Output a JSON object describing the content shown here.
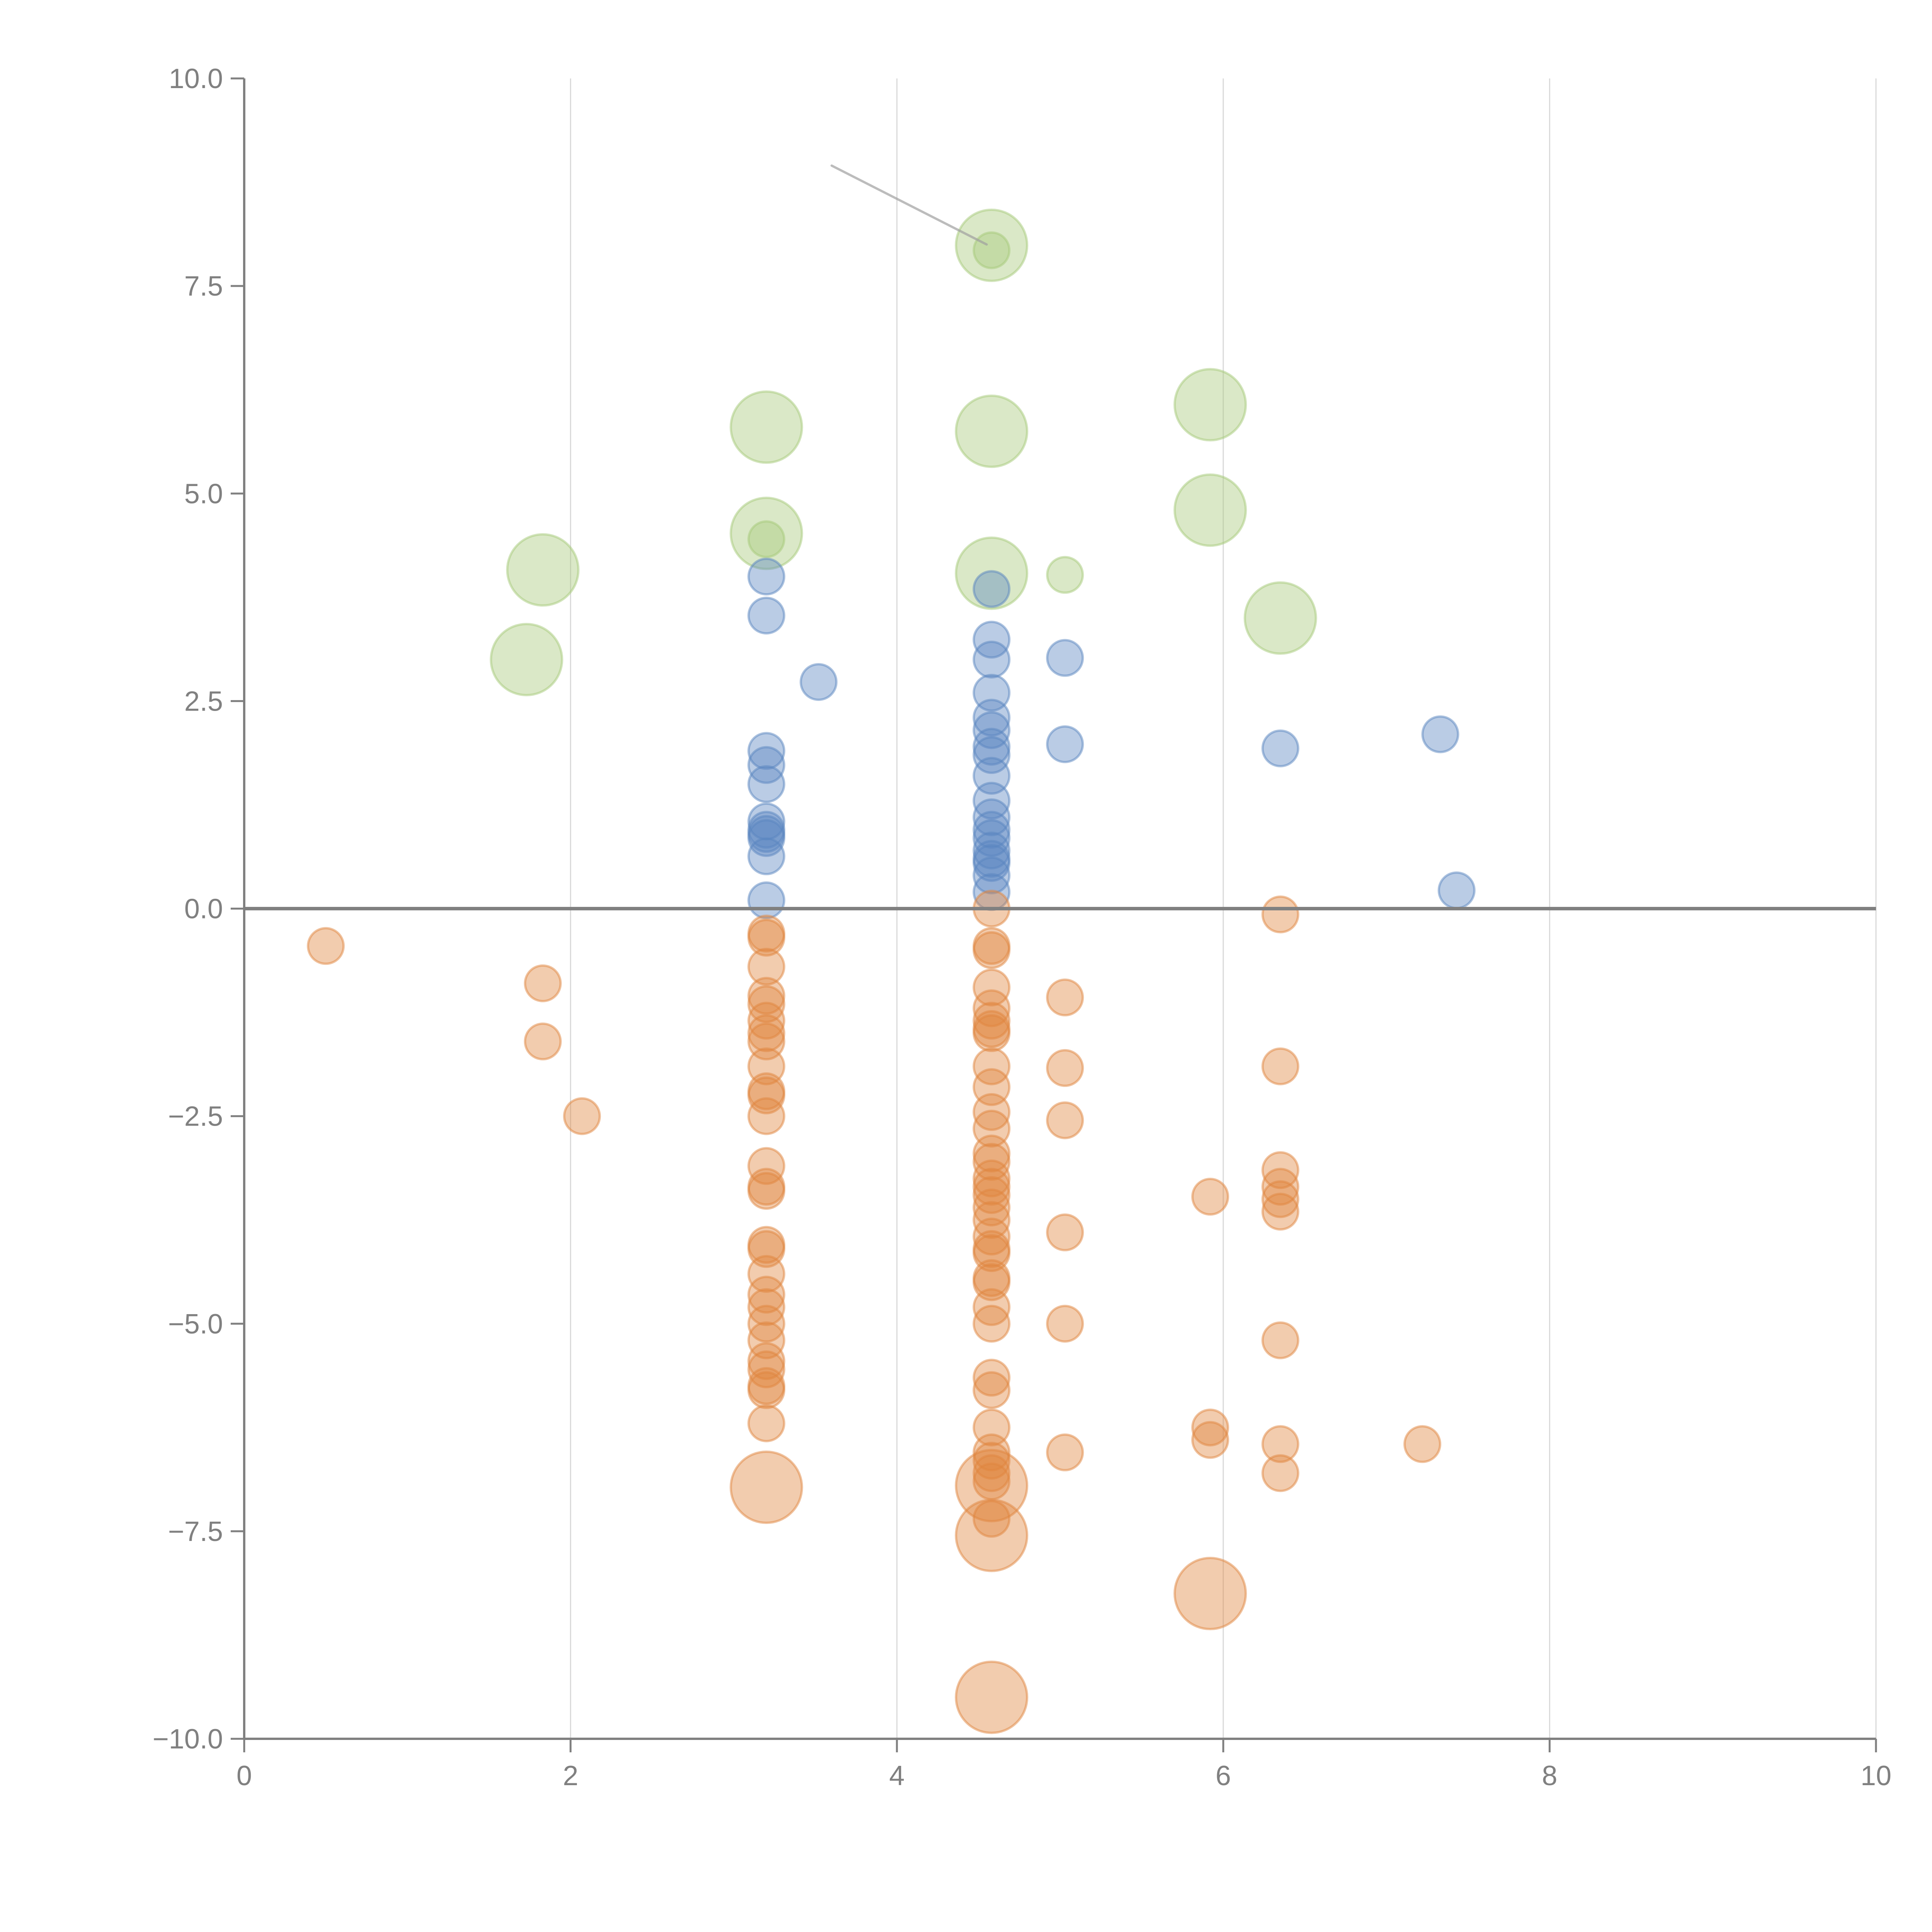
{
  "chart_data": {
    "type": "scatter",
    "title": "",
    "xlabel": "",
    "ylabel": "",
    "xlim": [
      0,
      10
    ],
    "ylim": [
      -10,
      10
    ],
    "grid": "vertical",
    "legend": "none",
    "x_ticks": [
      "0",
      "2",
      "4",
      "6",
      "8",
      "10"
    ],
    "x_tick_values": [
      0,
      2,
      4,
      6,
      8,
      10
    ],
    "y_ticks": [
      "10.0",
      "7.5",
      "5.0",
      "2.5",
      "0.0",
      "−2.5",
      "−5.0",
      "−7.5",
      "−10.0"
    ],
    "y_tick_values": [
      10,
      7.5,
      5,
      2.5,
      0,
      -2.5,
      -5,
      -7.5,
      -10
    ],
    "reference_line_y": 0,
    "colors": {
      "green": "#a6c97a",
      "blue": "#5a86c0",
      "orange": "#e0853f",
      "zero_line": "#808080"
    },
    "annotation": {
      "from": [
        3.6,
        8.95
      ],
      "to": [
        4.55,
        8.0
      ]
    },
    "series": [
      {
        "name": "green-large",
        "color": "green",
        "size": "large",
        "points": [
          [
            1.73,
            3.0
          ],
          [
            1.83,
            4.08
          ],
          [
            3.2,
            5.8
          ],
          [
            3.2,
            4.52
          ],
          [
            4.58,
            7.99
          ],
          [
            4.58,
            5.75
          ],
          [
            4.58,
            4.04
          ],
          [
            5.92,
            6.07
          ],
          [
            5.92,
            4.8
          ],
          [
            6.35,
            3.5
          ]
        ]
      },
      {
        "name": "green-small",
        "color": "green",
        "size": "small",
        "points": [
          [
            3.2,
            4.45
          ],
          [
            4.58,
            7.93
          ],
          [
            5.03,
            4.02
          ]
        ]
      },
      {
        "name": "blue",
        "color": "blue",
        "size": "small",
        "points": [
          [
            3.2,
            4.0
          ],
          [
            3.2,
            3.53
          ],
          [
            3.2,
            1.9
          ],
          [
            3.2,
            1.73
          ],
          [
            3.2,
            1.5
          ],
          [
            3.2,
            1.05
          ],
          [
            3.2,
            0.95
          ],
          [
            3.2,
            0.9
          ],
          [
            3.2,
            0.85
          ],
          [
            3.2,
            0.63
          ],
          [
            3.2,
            0.1
          ],
          [
            3.52,
            2.73
          ],
          [
            4.58,
            3.85
          ],
          [
            4.58,
            3.24
          ],
          [
            4.58,
            3.0
          ],
          [
            4.58,
            2.6
          ],
          [
            4.58,
            2.3
          ],
          [
            4.58,
            2.15
          ],
          [
            4.58,
            1.95
          ],
          [
            4.58,
            1.85
          ],
          [
            4.58,
            1.6
          ],
          [
            4.58,
            1.3
          ],
          [
            4.58,
            1.1
          ],
          [
            4.58,
            0.95
          ],
          [
            4.58,
            0.85
          ],
          [
            4.58,
            0.7
          ],
          [
            4.58,
            0.6
          ],
          [
            4.58,
            0.55
          ],
          [
            4.58,
            0.4
          ],
          [
            4.58,
            0.2
          ],
          [
            5.03,
            3.02
          ],
          [
            5.03,
            1.98
          ],
          [
            6.35,
            1.93
          ],
          [
            7.33,
            2.1
          ],
          [
            7.43,
            0.22
          ]
        ]
      },
      {
        "name": "orange-small",
        "color": "orange",
        "size": "small",
        "points": [
          [
            0.5,
            -0.45
          ],
          [
            1.83,
            -0.9
          ],
          [
            1.83,
            -1.6
          ],
          [
            2.07,
            -2.5
          ],
          [
            3.2,
            -0.3
          ],
          [
            3.2,
            -0.35
          ],
          [
            3.2,
            -0.7
          ],
          [
            3.2,
            -1.05
          ],
          [
            3.2,
            -1.15
          ],
          [
            3.2,
            -1.35
          ],
          [
            3.2,
            -1.5
          ],
          [
            3.2,
            -1.6
          ],
          [
            3.2,
            -1.9
          ],
          [
            3.2,
            -2.2
          ],
          [
            3.2,
            -2.25
          ],
          [
            3.2,
            -2.5
          ],
          [
            3.2,
            -3.1
          ],
          [
            3.2,
            -3.35
          ],
          [
            3.2,
            -3.4
          ],
          [
            3.2,
            -4.05
          ],
          [
            3.2,
            -4.1
          ],
          [
            3.2,
            -4.4
          ],
          [
            3.2,
            -4.65
          ],
          [
            3.2,
            -4.8
          ],
          [
            3.2,
            -5.0
          ],
          [
            3.2,
            -5.2
          ],
          [
            3.2,
            -5.45
          ],
          [
            3.2,
            -5.55
          ],
          [
            3.2,
            -5.75
          ],
          [
            3.2,
            -5.8
          ],
          [
            3.2,
            -6.2
          ],
          [
            4.58,
            0.0
          ],
          [
            4.58,
            -0.45
          ],
          [
            4.58,
            -0.5
          ],
          [
            4.58,
            -0.95
          ],
          [
            4.58,
            -1.2
          ],
          [
            4.58,
            -1.35
          ],
          [
            4.58,
            -1.45
          ],
          [
            4.58,
            -1.5
          ],
          [
            4.58,
            -1.9
          ],
          [
            4.58,
            -2.15
          ],
          [
            4.58,
            -2.45
          ],
          [
            4.58,
            -2.65
          ],
          [
            4.58,
            -2.95
          ],
          [
            4.58,
            -3.05
          ],
          [
            4.58,
            -3.25
          ],
          [
            4.58,
            -3.35
          ],
          [
            4.58,
            -3.45
          ],
          [
            4.58,
            -3.6
          ],
          [
            4.58,
            -3.75
          ],
          [
            4.58,
            -3.95
          ],
          [
            4.58,
            -4.1
          ],
          [
            4.58,
            -4.15
          ],
          [
            4.58,
            -4.45
          ],
          [
            4.58,
            -4.5
          ],
          [
            4.58,
            -4.8
          ],
          [
            4.58,
            -5.0
          ],
          [
            4.58,
            -5.65
          ],
          [
            4.58,
            -5.8
          ],
          [
            4.58,
            -6.25
          ],
          [
            4.58,
            -6.55
          ],
          [
            4.58,
            -6.65
          ],
          [
            4.58,
            -6.8
          ],
          [
            4.58,
            -6.9
          ],
          [
            4.58,
            -7.35
          ],
          [
            5.03,
            -1.07
          ],
          [
            5.03,
            -1.92
          ],
          [
            5.03,
            -2.55
          ],
          [
            5.03,
            -3.9
          ],
          [
            5.03,
            -5.0
          ],
          [
            5.03,
            -6.55
          ],
          [
            5.92,
            -3.47
          ],
          [
            5.92,
            -6.25
          ],
          [
            5.92,
            -6.4
          ],
          [
            6.35,
            -0.07
          ],
          [
            6.35,
            -1.9
          ],
          [
            6.35,
            -3.15
          ],
          [
            6.35,
            -3.35
          ],
          [
            6.35,
            -3.5
          ],
          [
            6.35,
            -3.65
          ],
          [
            6.35,
            -5.2
          ],
          [
            6.35,
            -6.45
          ],
          [
            6.35,
            -6.8
          ],
          [
            7.22,
            -6.45
          ]
        ]
      },
      {
        "name": "orange-large",
        "color": "orange",
        "size": "large",
        "points": [
          [
            3.2,
            -6.97
          ],
          [
            4.58,
            -6.95
          ],
          [
            4.58,
            -7.55
          ],
          [
            4.58,
            -9.5
          ],
          [
            5.92,
            -8.25
          ]
        ]
      }
    ]
  }
}
